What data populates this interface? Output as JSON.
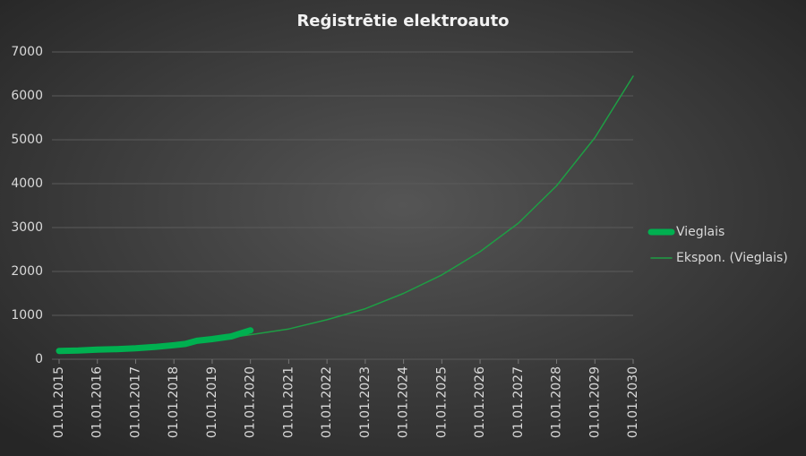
{
  "chart_data": {
    "type": "line",
    "title": "Reģistrētie elektroauto",
    "xlim": [
      2015,
      2030
    ],
    "xticks": [
      {
        "value": 2015,
        "label": "01.01.2015"
      },
      {
        "value": 2016,
        "label": "01.01.2016"
      },
      {
        "value": 2017,
        "label": "01.01.2017"
      },
      {
        "value": 2018,
        "label": "01.01.2018"
      },
      {
        "value": 2019,
        "label": "01.01.2019"
      },
      {
        "value": 2020,
        "label": "01.01.2020"
      },
      {
        "value": 2021,
        "label": "01.01.2021"
      },
      {
        "value": 2022,
        "label": "01.01.2022"
      },
      {
        "value": 2023,
        "label": "01.01.2023"
      },
      {
        "value": 2024,
        "label": "01.01.2024"
      },
      {
        "value": 2025,
        "label": "01.01.2025"
      },
      {
        "value": 2026,
        "label": "01.01.2026"
      },
      {
        "value": 2027,
        "label": "01.01.2027"
      },
      {
        "value": 2028,
        "label": "01.01.2028"
      },
      {
        "value": 2029,
        "label": "01.01.2029"
      },
      {
        "value": 2030,
        "label": "01.01.2030"
      }
    ],
    "ylim": [
      0,
      7000
    ],
    "yticks": [
      0,
      1000,
      2000,
      3000,
      4000,
      5000,
      6000,
      7000
    ],
    "grid": true,
    "legend": "right",
    "series": [
      {
        "name": "Vieglais",
        "color": "#00b050",
        "width": 7,
        "x": [
          2015,
          2015.5,
          2016,
          2016.5,
          2017,
          2017.5,
          2018,
          2018.3,
          2018.6,
          2019,
          2019.5,
          2020
        ],
        "values": [
          190,
          200,
          220,
          230,
          250,
          280,
          320,
          350,
          420,
          460,
          520,
          660
        ]
      },
      {
        "name": "Ekspon. (Vieglais)",
        "color": "#1e9e44",
        "width": 1.5,
        "x": [
          2015,
          2016,
          2017,
          2018,
          2019,
          2020,
          2021,
          2022,
          2023,
          2024,
          2025,
          2026,
          2027,
          2028,
          2029,
          2030
        ],
        "values": [
          165,
          210,
          270,
          340,
          440,
          560,
          690,
          900,
          1150,
          1500,
          1920,
          2450,
          3100,
          3950,
          5050,
          6450
        ]
      }
    ]
  }
}
